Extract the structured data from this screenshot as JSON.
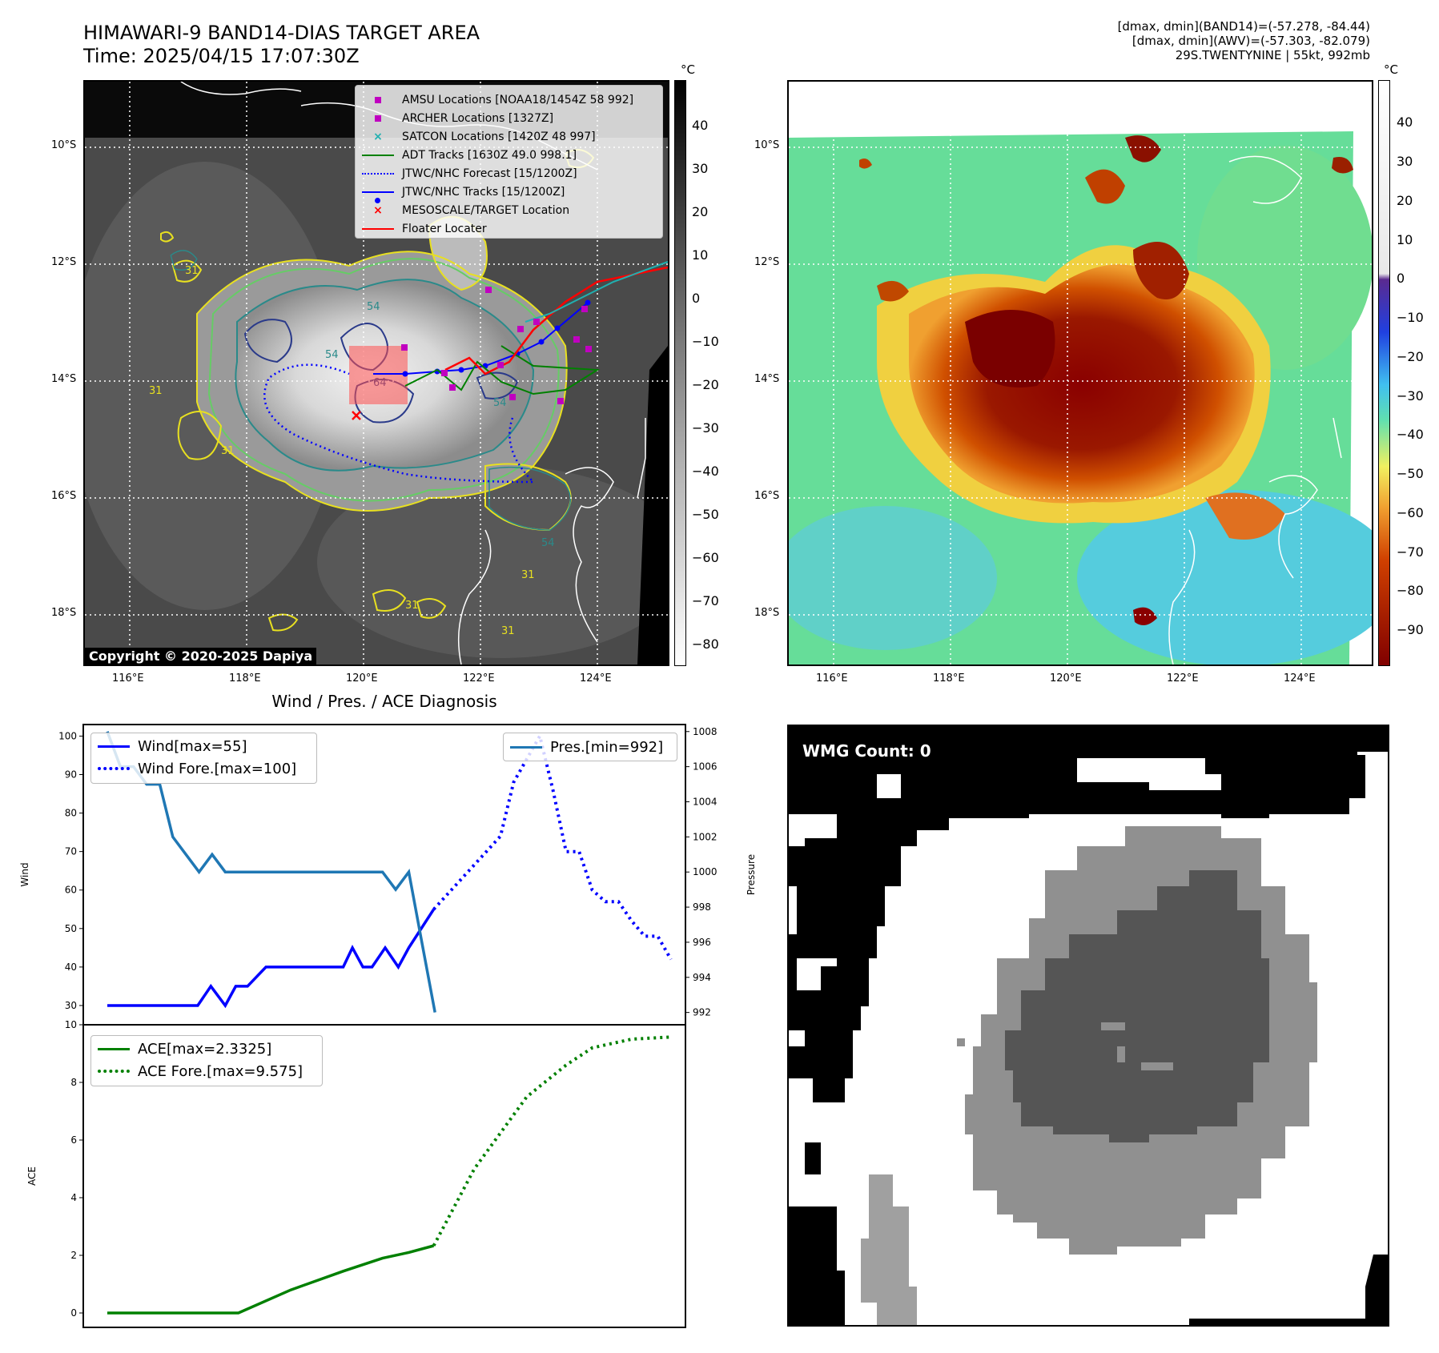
{
  "header": {
    "title_line1": "HIMAWARI-9 BAND14-DIAS TARGET AREA",
    "title_line2": "Time: 2025/04/15 17:07:30Z",
    "info_line1": "[dmax, dmin](BAND14)=(-57.278, -84.44)",
    "info_line2": "[dmax, dmin](AWV)=(-57.303, -82.079)",
    "info_line3": "29S.TWENTYNINE | 55kt, 992mb"
  },
  "map": {
    "lat_labels": [
      "10°S",
      "12°S",
      "14°S",
      "16°S",
      "18°S"
    ],
    "lon_labels": [
      "116°E",
      "118°E",
      "120°E",
      "122°E",
      "124°E"
    ],
    "copyright": "Copyright © 2020-2025 Dapiya",
    "contour_labels": [
      "54",
      "64",
      "54",
      "31",
      "31",
      "54",
      "31",
      "31",
      "31",
      "54",
      "31"
    ],
    "legend": [
      {
        "label": "AMSU Locations [NOAA18/1454Z 58 992]",
        "color": "#c000c0",
        "marker": "square"
      },
      {
        "label": "ARCHER Locations [1327Z]",
        "color": "#c000c0",
        "marker": "square"
      },
      {
        "label": "SATCON Locations [1420Z 48 997]",
        "color": "#20b0b0",
        "marker": "x"
      },
      {
        "label": "ADT Tracks [1630Z 49.0 998.1]",
        "color": "#008000",
        "marker": "line"
      },
      {
        "label": "JTWC/NHC Forecast [15/1200Z]",
        "color": "#0000ff",
        "marker": "dotted"
      },
      {
        "label": "JTWC/NHC Tracks [15/1200Z]",
        "color": "#0000ff",
        "marker": "line-dot"
      },
      {
        "label": "MESOSCALE/TARGET Location",
        "color": "#ff0000",
        "marker": "x"
      },
      {
        "label": "Floater Locater",
        "color": "#ff0000",
        "marker": "line"
      }
    ]
  },
  "colorbar_gray": {
    "unit": "°C",
    "ticks": [
      "40",
      "30",
      "20",
      "10",
      "0",
      "−10",
      "−20",
      "−30",
      "−40",
      "−50",
      "−60",
      "−70",
      "−80"
    ]
  },
  "colorbar_color": {
    "unit": "°C",
    "ticks": [
      "40",
      "30",
      "20",
      "10",
      "0",
      "−10",
      "−20",
      "−30",
      "−40",
      "−50",
      "−60",
      "−70",
      "−80",
      "−90"
    ]
  },
  "wmg": {
    "label": "WMG Count: 0"
  },
  "chart_data": [
    {
      "type": "line",
      "title": "Wind / Pres. / ACE Diagnosis",
      "ylabel": "Wind",
      "ylim": [
        25,
        103
      ],
      "yticks": [
        "100",
        "90",
        "80",
        "70",
        "60",
        "50",
        "40",
        "30"
      ],
      "series": [
        {
          "name": "Wind[max=55]",
          "color": "#0000ff",
          "style": "solid",
          "x": [
            0,
            6,
            6.9,
            7.9,
            9,
            9.8,
            10.7,
            12.1,
            18,
            18.7,
            19.5,
            20.2,
            21.2,
            22.2,
            23,
            24.9
          ],
          "y": [
            30,
            30,
            30,
            35,
            30,
            35,
            35,
            40,
            40,
            45,
            40,
            40,
            45,
            40,
            45,
            55
          ]
        },
        {
          "name": "Wind Fore.[max=100]",
          "color": "#0000ff",
          "style": "dotted",
          "x": [
            24.9,
            30,
            31,
            33,
            34,
            35,
            36,
            37,
            38,
            39,
            40,
            41,
            42,
            43
          ],
          "y": [
            55,
            74,
            88,
            100,
            86,
            70,
            70,
            60,
            57,
            57,
            52,
            48,
            48,
            42
          ]
        }
      ]
    },
    {
      "type": "line",
      "ylabel": "Pressure",
      "ylim": [
        991.3,
        1008.4
      ],
      "yticks": [
        "1008",
        "1006",
        "1004",
        "1002",
        "1000",
        "998",
        "996",
        "994",
        "992"
      ],
      "series": [
        {
          "name": "Pres.[min=992]",
          "color": "#1f77b4",
          "style": "solid",
          "x": [
            0,
            1,
            2,
            3,
            4,
            5,
            6,
            7,
            8,
            9,
            10,
            11,
            12,
            21,
            22,
            23,
            24,
            25
          ],
          "y": [
            1008,
            1006,
            1006,
            1005,
            1005,
            1002,
            1001,
            1000,
            1001,
            1000,
            1000,
            1000,
            1000,
            1000,
            999,
            1000,
            996,
            992
          ]
        }
      ]
    },
    {
      "type": "line",
      "ylabel": "ACE",
      "ylim": [
        -0.5,
        10
      ],
      "yticks": [
        "10",
        "8",
        "6",
        "4",
        "2",
        "0"
      ],
      "series": [
        {
          "name": "ACE[max=2.3325]",
          "color": "#008000",
          "style": "solid",
          "x": [
            0,
            10,
            14,
            18,
            21,
            23,
            24.9
          ],
          "y": [
            0,
            0,
            0.8,
            1.45,
            1.9,
            2.1,
            2.3325
          ]
        },
        {
          "name": "ACE Fore.[max=9.575]",
          "color": "#008000",
          "style": "dotted",
          "x": [
            24.9,
            28,
            32,
            35,
            37,
            40,
            43
          ],
          "y": [
            2.3325,
            5,
            7.5,
            8.6,
            9.2,
            9.5,
            9.575
          ]
        }
      ]
    }
  ]
}
